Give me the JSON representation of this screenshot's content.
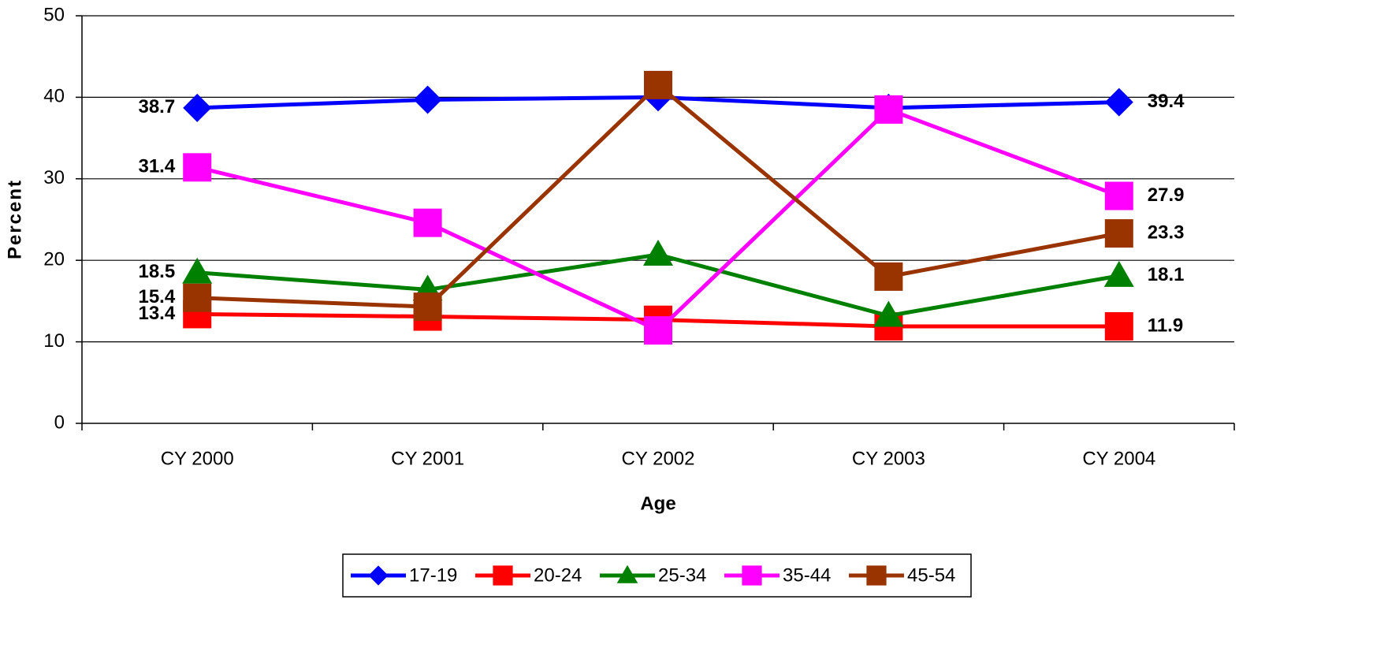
{
  "chart_data": {
    "type": "line",
    "x_label": "Age",
    "y_label": "Percent",
    "categories": [
      "CY 2000",
      "CY 2001",
      "CY 2002",
      "CY 2003",
      "CY 2004"
    ],
    "series": [
      {
        "name": "17-19",
        "color": "#0000ff",
        "marker": "diamond",
        "values": [
          38.7,
          39.7,
          40.0,
          38.7,
          39.4
        ]
      },
      {
        "name": "20-24",
        "color": "#ff0000",
        "marker": "square",
        "values": [
          13.4,
          13.1,
          12.7,
          11.9,
          11.9
        ]
      },
      {
        "name": "25-34",
        "color": "#008000",
        "marker": "triangle",
        "values": [
          18.5,
          16.4,
          20.7,
          13.2,
          18.1
        ]
      },
      {
        "name": "35-44",
        "color": "#ff00ff",
        "marker": "square",
        "values": [
          31.4,
          24.6,
          11.4,
          38.5,
          27.9
        ]
      },
      {
        "name": "45-54",
        "color": "#993300",
        "marker": "square",
        "values": [
          15.4,
          14.3,
          41.5,
          18.0,
          23.3
        ]
      }
    ],
    "data_labels": "ends",
    "ylim": [
      0,
      50
    ],
    "yticks": [
      0,
      10,
      20,
      30,
      40,
      50
    ],
    "grid": true,
    "legend": "bottom"
  }
}
